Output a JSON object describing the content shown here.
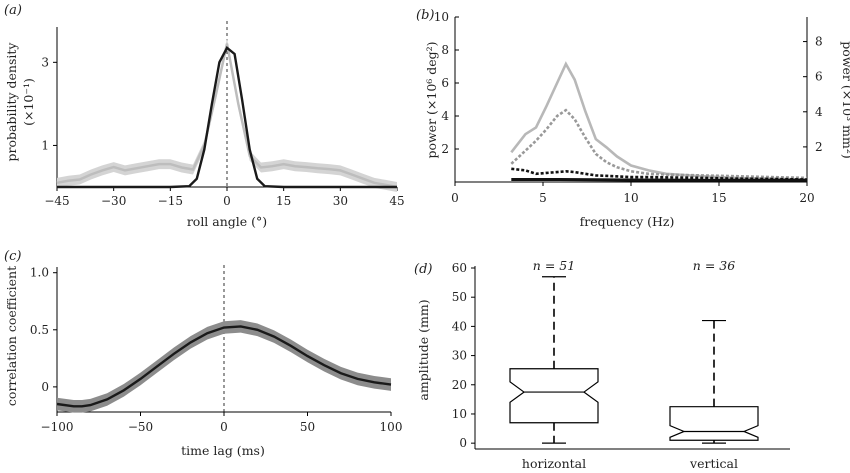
{
  "chart_data": [
    {
      "panel": "(a)",
      "type": "line",
      "xlabel": "roll angle (°)",
      "ylabel": "probability density",
      "ylabel2": "(×10⁻¹)",
      "xlim": [
        -45,
        45
      ],
      "ylim": [
        0,
        3.85
      ],
      "xticks": [
        -45,
        -30,
        -15,
        0,
        15,
        30,
        45
      ],
      "yticks": [
        1,
        3
      ],
      "reference_line_x": 0,
      "series": [
        {
          "color": "#bdbdbd",
          "band_color": "#d4d4d4",
          "x": [
            -45,
            -42,
            -39,
            -36,
            -33,
            -30,
            -27,
            -24,
            -21,
            -18,
            -15,
            -12,
            -9,
            -6,
            -3,
            0,
            3,
            6,
            9,
            12,
            15,
            18,
            21,
            24,
            27,
            30,
            33,
            36,
            39,
            42,
            45
          ],
          "y": [
            0.1,
            0.15,
            0.18,
            0.3,
            0.4,
            0.48,
            0.4,
            0.45,
            0.5,
            0.55,
            0.55,
            0.47,
            0.42,
            1.0,
            2.2,
            3.45,
            2.0,
            0.75,
            0.47,
            0.5,
            0.55,
            0.5,
            0.48,
            0.45,
            0.43,
            0.4,
            0.3,
            0.2,
            0.1,
            0.05,
            0.0
          ],
          "band": 0.12
        },
        {
          "color": "#1a1a1a",
          "x": [
            -45,
            -30,
            -15,
            -10,
            -8,
            -6,
            -4,
            -2,
            0,
            2,
            4,
            6,
            8,
            10,
            15,
            30,
            45
          ],
          "y": [
            0,
            0,
            0,
            0.02,
            0.2,
            0.9,
            2.0,
            3.0,
            3.35,
            3.2,
            2.1,
            0.9,
            0.2,
            0.02,
            0,
            0,
            0
          ]
        }
      ]
    },
    {
      "panel": "(b)",
      "type": "line",
      "xlabel": "frequency (Hz)",
      "ylabel": "power (×10⁶ deg²)",
      "ylabel_right": "power (×10³ mm²)",
      "xlim": [
        0,
        20
      ],
      "ylim": [
        0,
        10
      ],
      "ylim_right": [
        0,
        9.4
      ],
      "xticks": [
        0,
        5,
        10,
        15,
        20
      ],
      "yticks": [
        2,
        4,
        6,
        8,
        10
      ],
      "yticks_right": [
        2,
        4,
        6,
        8
      ],
      "series": [
        {
          "color": "#b8b8b8",
          "style": "solid",
          "axis": "left",
          "x": [
            3.2,
            4,
            4.6,
            5.2,
            5.8,
            6.3,
            6.8,
            7.4,
            8,
            8.6,
            9.2,
            10,
            11,
            12,
            14,
            16,
            18,
            20
          ],
          "y": [
            1.8,
            2.9,
            3.3,
            4.6,
            6.0,
            7.15,
            6.2,
            4.3,
            2.6,
            2.1,
            1.55,
            1.0,
            0.7,
            0.5,
            0.35,
            0.25,
            0.2,
            0.15
          ]
        },
        {
          "color": "#999999",
          "style": "dotted",
          "axis": "left",
          "x": [
            3.2,
            4,
            4.6,
            5.2,
            5.8,
            6.3,
            6.8,
            7.4,
            8,
            8.6,
            9.2,
            10,
            11,
            12,
            14,
            16,
            18,
            20
          ],
          "y": [
            1.1,
            1.9,
            2.5,
            3.2,
            4.0,
            4.35,
            3.8,
            2.7,
            1.7,
            1.2,
            0.9,
            0.65,
            0.5,
            0.45,
            0.4,
            0.35,
            0.3,
            0.25
          ]
        },
        {
          "color": "#111111",
          "style": "dotted",
          "axis": "left",
          "x": [
            3.2,
            4,
            4.6,
            5.2,
            5.8,
            6.3,
            6.8,
            7.4,
            8,
            9,
            10,
            11,
            12,
            14,
            16,
            18,
            20
          ],
          "y": [
            0.8,
            0.7,
            0.5,
            0.55,
            0.6,
            0.65,
            0.6,
            0.5,
            0.4,
            0.35,
            0.3,
            0.3,
            0.28,
            0.25,
            0.2,
            0.18,
            0.15
          ]
        },
        {
          "color": "#111111",
          "style": "solid",
          "axis": "left",
          "x": [
            3.2,
            6,
            10,
            14,
            20
          ],
          "y": [
            0.15,
            0.15,
            0.12,
            0.1,
            0.1
          ]
        }
      ]
    },
    {
      "panel": "(c)",
      "type": "line",
      "xlabel": "time lag (ms)",
      "ylabel": "correlation coefficient",
      "xlim": [
        -100,
        100
      ],
      "ylim": [
        -0.22,
        1.05
      ],
      "xticks": [
        -100,
        -50,
        0,
        50,
        100
      ],
      "yticks": [
        0,
        0.5,
        1.0
      ],
      "ytick_labels": [
        "0",
        "0.5",
        "1.0"
      ],
      "reference_line_x": 0,
      "series": [
        {
          "color": "#1a1a1a",
          "band_color": "#8c8c8c",
          "band": 0.055,
          "x": [
            -100,
            -90,
            -85,
            -80,
            -70,
            -60,
            -50,
            -40,
            -30,
            -20,
            -10,
            0,
            10,
            20,
            30,
            40,
            50,
            60,
            70,
            80,
            90,
            100
          ],
          "y": [
            -0.15,
            -0.17,
            -0.17,
            -0.16,
            -0.11,
            -0.03,
            0.07,
            0.18,
            0.29,
            0.39,
            0.47,
            0.52,
            0.53,
            0.5,
            0.44,
            0.36,
            0.27,
            0.19,
            0.12,
            0.07,
            0.04,
            0.02
          ]
        }
      ]
    },
    {
      "panel": "(d)",
      "type": "box",
      "ylabel": "amplitude (mm)",
      "ylim": [
        -2,
        60
      ],
      "yticks": [
        0,
        10,
        20,
        30,
        40,
        50,
        60
      ],
      "categories": [
        "horizontal",
        "vertical"
      ],
      "n_labels": [
        "n = 51",
        "n = 36"
      ],
      "boxes": [
        {
          "whisker_low": 0,
          "q1": 7,
          "median": 17.5,
          "q3": 25.5,
          "whisker_high": 57,
          "notch_low": 14,
          "notch_high": 21
        },
        {
          "whisker_low": 0,
          "q1": 1,
          "median": 4,
          "q3": 12.5,
          "whisker_high": 42,
          "notch_low": 2,
          "notch_high": 6
        }
      ]
    }
  ]
}
